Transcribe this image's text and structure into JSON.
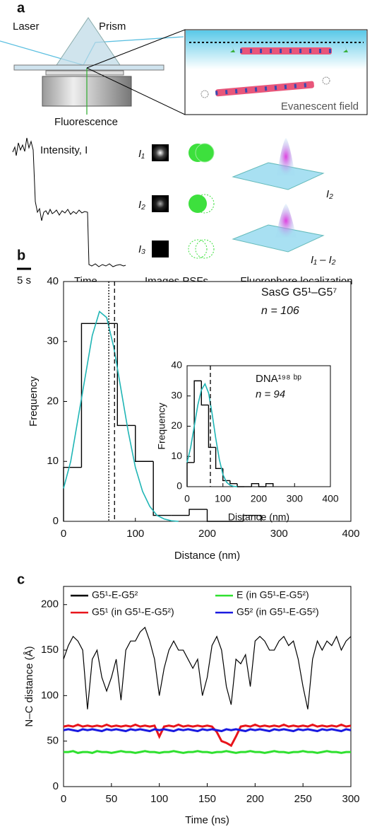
{
  "panels": [
    "a",
    "b",
    "c"
  ],
  "diagram": {
    "laser": "Laser",
    "prism": "Prism",
    "fluorescence": "Fluorescence",
    "evanescent": "Evanescent field",
    "intensity": "Intensity, I",
    "scale": "5 s",
    "time": "Time →",
    "psf_labels": [
      "I₁",
      "I₂",
      "I₃"
    ],
    "images": "Images PSFs",
    "surface_labels": [
      "I₂",
      "I₁ – I₂"
    ],
    "localization": "Fluorophore localization"
  },
  "chart_data": [
    {
      "type": "histogram",
      "xlabel": "Distance (nm)",
      "ylabel": "Frequency",
      "annotations": [
        "SasG G5¹–G5⁷",
        "n = 106"
      ],
      "bins": [
        0,
        25,
        50,
        75,
        100,
        125,
        150,
        175,
        200,
        225,
        250,
        275
      ],
      "values": [
        9,
        33,
        33,
        16,
        10,
        1,
        1,
        2,
        0,
        0,
        1
      ],
      "color": "#000000",
      "fit": {
        "color": "#1fb5b5",
        "x": [
          0,
          10,
          20,
          30,
          40,
          50,
          60,
          70,
          80,
          90,
          100,
          110,
          120,
          130,
          140,
          150,
          160
        ],
        "values": [
          5.5,
          10,
          17,
          24,
          31,
          35,
          34,
          29,
          22,
          15,
          9,
          5,
          2.5,
          1,
          0.4,
          0.1,
          0
        ]
      },
      "vlines": [
        {
          "x": 63,
          "style": "dotted"
        },
        {
          "x": 71,
          "style": "dashed"
        }
      ],
      "xlim": [
        0,
        400
      ],
      "ylim": [
        0,
        40
      ],
      "xticks": [
        0,
        100,
        200,
        300,
        400
      ],
      "yticks": [
        0,
        10,
        20,
        30,
        40
      ]
    },
    {
      "type": "histogram",
      "xlabel": "Distance (nm)",
      "ylabel": "Frequency",
      "annotations": [
        "DNA¹⁹⁸ ᵇᵖ",
        "n = 94"
      ],
      "bins": [
        0,
        20,
        40,
        60,
        80,
        100,
        120,
        140,
        160,
        180,
        200,
        220,
        240
      ],
      "values": [
        8,
        35,
        27,
        13,
        6,
        2,
        1,
        0,
        0,
        1,
        0,
        1
      ],
      "color": "#000000",
      "fit": {
        "color": "#1fb5b5",
        "x": [
          0,
          10,
          20,
          30,
          40,
          50,
          60,
          70,
          80,
          90,
          100,
          110,
          120,
          130,
          140
        ],
        "values": [
          8,
          13,
          20,
          27,
          32,
          34,
          31,
          24,
          16,
          9,
          4,
          1.5,
          0.5,
          0.1,
          0
        ]
      },
      "vlines": [
        {
          "x": 65,
          "style": "dashed"
        }
      ],
      "xlim": [
        0,
        400
      ],
      "ylim": [
        0,
        40
      ],
      "xticks": [
        0,
        100,
        200,
        300,
        400
      ],
      "yticks": [
        0,
        10,
        20,
        30,
        40
      ]
    },
    {
      "type": "line",
      "xlabel": "Time (ns)",
      "ylabel": "N–C distance (Å)",
      "x": [
        0,
        5,
        10,
        15,
        20,
        25,
        30,
        35,
        40,
        45,
        50,
        55,
        60,
        65,
        70,
        75,
        80,
        85,
        90,
        95,
        100,
        105,
        110,
        115,
        120,
        125,
        130,
        135,
        140,
        145,
        150,
        155,
        160,
        165,
        170,
        175,
        180,
        185,
        190,
        195,
        200,
        205,
        210,
        215,
        220,
        225,
        230,
        235,
        240,
        245,
        250,
        255,
        260,
        265,
        270,
        275,
        280,
        285,
        290,
        295,
        300
      ],
      "series": [
        {
          "name": "G5¹-E-G5²",
          "color": "#000000",
          "values": [
            140,
            155,
            165,
            160,
            150,
            85,
            140,
            150,
            120,
            105,
            120,
            140,
            95,
            150,
            160,
            160,
            170,
            175,
            160,
            140,
            100,
            130,
            150,
            160,
            150,
            150,
            140,
            130,
            140,
            100,
            120,
            155,
            165,
            150,
            110,
            90,
            140,
            135,
            145,
            110,
            160,
            165,
            160,
            150,
            150,
            160,
            165,
            155,
            160,
            140,
            110,
            85,
            140,
            160,
            150,
            160,
            155,
            165,
            150,
            160,
            165
          ]
        },
        {
          "name": "G5¹ (in G5¹-E-G5²)",
          "color": "#e8141b",
          "values": [
            66,
            67,
            66,
            68,
            66,
            67,
            66,
            67,
            66,
            68,
            66,
            67,
            66,
            67,
            66,
            68,
            66,
            67,
            66,
            67,
            55,
            66,
            67,
            66,
            68,
            66,
            67,
            66,
            67,
            66,
            67,
            66,
            60,
            50,
            48,
            45,
            55,
            66,
            67,
            66,
            68,
            66,
            67,
            66,
            67,
            66,
            68,
            66,
            67,
            66,
            67,
            66,
            68,
            66,
            67,
            66,
            67,
            66,
            68,
            66,
            67
          ]
        },
        {
          "name": "E (in G5¹-E-G5²)",
          "color": "#2fe02f",
          "values": [
            38,
            38,
            39,
            37,
            38,
            38,
            37,
            39,
            38,
            38,
            37,
            38,
            39,
            38,
            38,
            37,
            38,
            39,
            38,
            38,
            37,
            38,
            38,
            39,
            38,
            37,
            38,
            38,
            39,
            38,
            38,
            37,
            38,
            38,
            39,
            38,
            37,
            38,
            38,
            39,
            38,
            38,
            37,
            38,
            39,
            38,
            38,
            37,
            38,
            38,
            39,
            38,
            38,
            37,
            38,
            39,
            38,
            38,
            37,
            38,
            38
          ]
        },
        {
          "name": "G5² (in G5¹-E-G5²)",
          "color": "#1a1ae0",
          "values": [
            62,
            63,
            62,
            61,
            63,
            62,
            63,
            62,
            61,
            63,
            62,
            63,
            62,
            61,
            63,
            62,
            63,
            62,
            61,
            63,
            62,
            63,
            62,
            61,
            63,
            62,
            63,
            62,
            61,
            63,
            62,
            63,
            62,
            61,
            63,
            62,
            63,
            62,
            61,
            63,
            62,
            63,
            62,
            61,
            63,
            62,
            63,
            62,
            61,
            63,
            62,
            63,
            62,
            61,
            63,
            62,
            63,
            62,
            61,
            63,
            62
          ]
        }
      ],
      "xlim": [
        0,
        300
      ],
      "ylim": [
        0,
        220
      ],
      "xticks": [
        0,
        50,
        100,
        150,
        200,
        250,
        300
      ],
      "yticks": [
        0,
        50,
        100,
        150,
        200
      ]
    }
  ]
}
